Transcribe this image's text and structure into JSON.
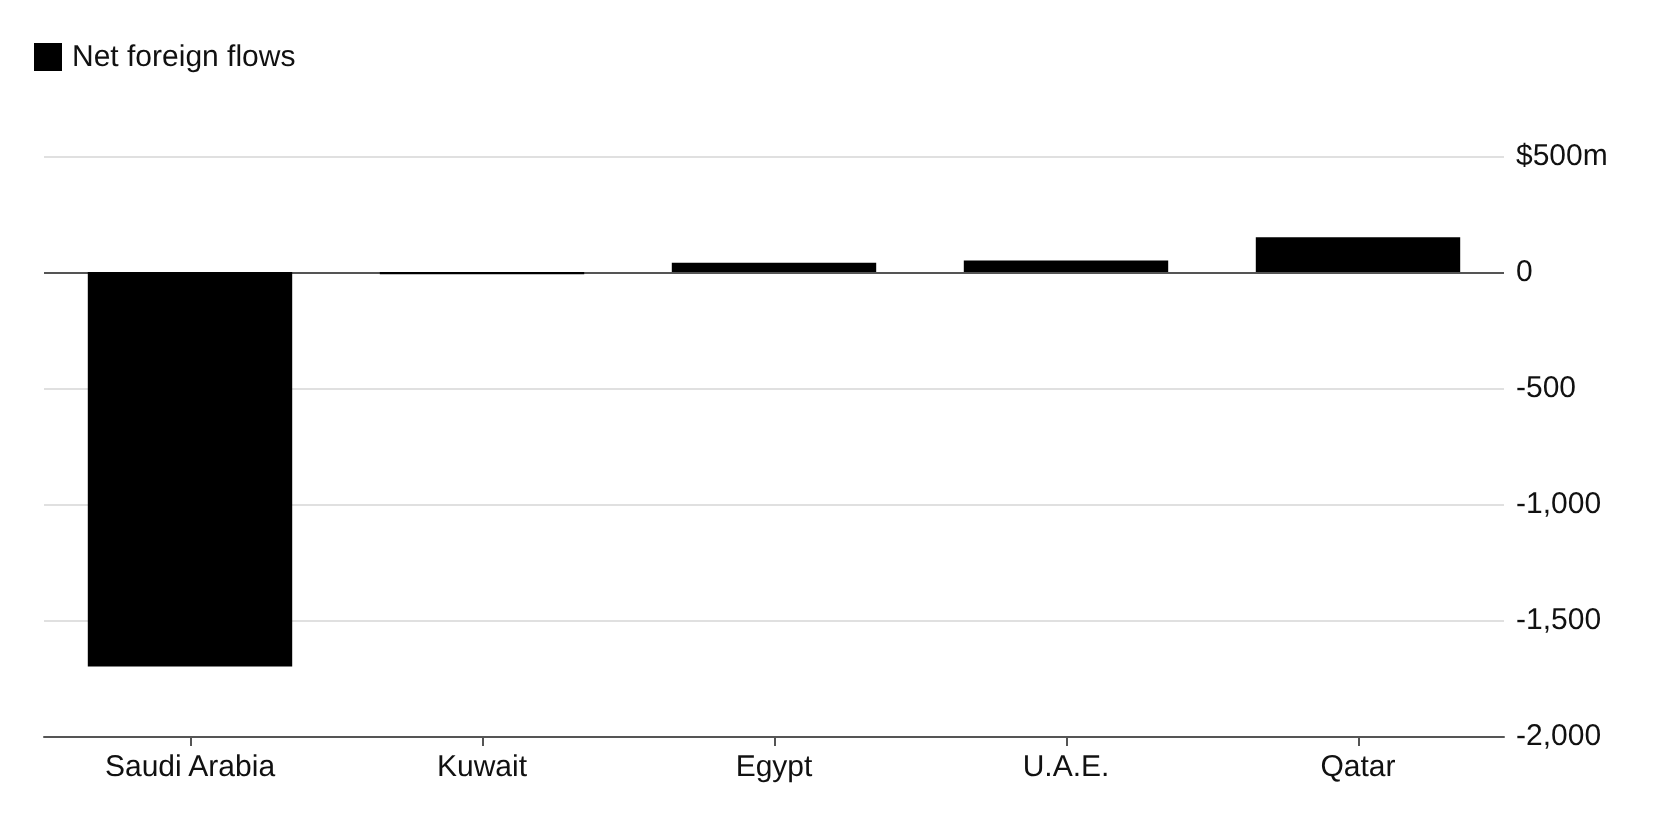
{
  "chart_data": {
    "type": "bar",
    "categories": [
      "Saudi Arabia",
      "Kuwait",
      "Egypt",
      "U.A.E.",
      "Qatar"
    ],
    "series": [
      {
        "name": "Net foreign flows",
        "color": "#000000",
        "values": [
          -1700,
          -10,
          40,
          50,
          150
        ]
      }
    ],
    "ylim": [
      -2000,
      500
    ],
    "yticks": [
      {
        "value": -2000,
        "label": "-2,000"
      },
      {
        "value": -1500,
        "label": "-1,500"
      },
      {
        "value": -1000,
        "label": "-1,000"
      },
      -500,
      0,
      {
        "value": 500,
        "label": "$500m"
      }
    ],
    "grid": "y",
    "legend": "top left"
  }
}
